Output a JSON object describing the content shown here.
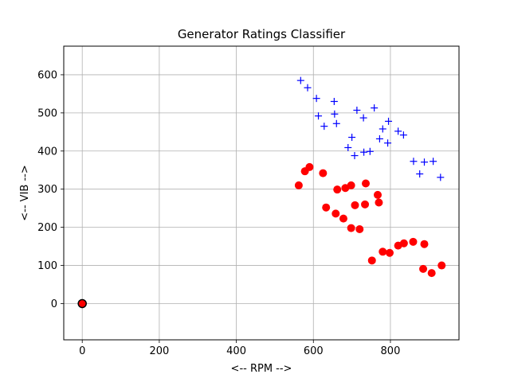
{
  "chart_data": {
    "type": "scatter",
    "title": "Generator Ratings Classifier",
    "xlabel": "<-- RPM -->",
    "ylabel": "<-- VIB -->",
    "xlim": [
      -48,
      978
    ],
    "ylim": [
      -95,
      675
    ],
    "xticks": [
      0,
      200,
      400,
      600,
      800
    ],
    "yticks": [
      0,
      100,
      200,
      300,
      400,
      500,
      600
    ],
    "grid": true,
    "series": [
      {
        "marker": "plus",
        "color": "#0000ff",
        "points": [
          [
            567,
            585
          ],
          [
            585,
            566
          ],
          [
            608,
            538
          ],
          [
            654,
            530
          ],
          [
            613,
            492
          ],
          [
            628,
            465
          ],
          [
            655,
            497
          ],
          [
            660,
            472
          ],
          [
            713,
            507
          ],
          [
            730,
            487
          ],
          [
            758,
            513
          ],
          [
            795,
            478
          ],
          [
            780,
            458
          ],
          [
            820,
            452
          ],
          [
            834,
            442
          ],
          [
            772,
            432
          ],
          [
            793,
            421
          ],
          [
            700,
            436
          ],
          [
            690,
            409
          ],
          [
            707,
            388
          ],
          [
            731,
            397
          ],
          [
            747,
            399
          ],
          [
            860,
            373
          ],
          [
            888,
            371
          ],
          [
            911,
            373
          ],
          [
            876,
            340
          ],
          [
            930,
            331
          ]
        ]
      },
      {
        "marker": "circle",
        "color": "#ff0000",
        "points": [
          [
            562,
            310
          ],
          [
            578,
            347
          ],
          [
            590,
            358
          ],
          [
            625,
            342
          ],
          [
            662,
            299
          ],
          [
            683,
            303
          ],
          [
            698,
            310
          ],
          [
            736,
            315
          ],
          [
            767,
            285
          ],
          [
            633,
            252
          ],
          [
            708,
            258
          ],
          [
            734,
            260
          ],
          [
            770,
            265
          ],
          [
            658,
            236
          ],
          [
            678,
            223
          ],
          [
            698,
            198
          ],
          [
            720,
            195
          ],
          [
            780,
            136
          ],
          [
            798,
            133
          ],
          [
            820,
            152
          ],
          [
            835,
            158
          ],
          [
            859,
            162
          ],
          [
            888,
            156
          ],
          [
            752,
            113
          ],
          [
            885,
            91
          ],
          [
            907,
            80
          ],
          [
            933,
            100
          ]
        ]
      },
      {
        "marker": "circle",
        "color": "#ff0000",
        "edgecolor": "#000000",
        "points": [
          [
            0,
            0
          ]
        ]
      }
    ]
  }
}
